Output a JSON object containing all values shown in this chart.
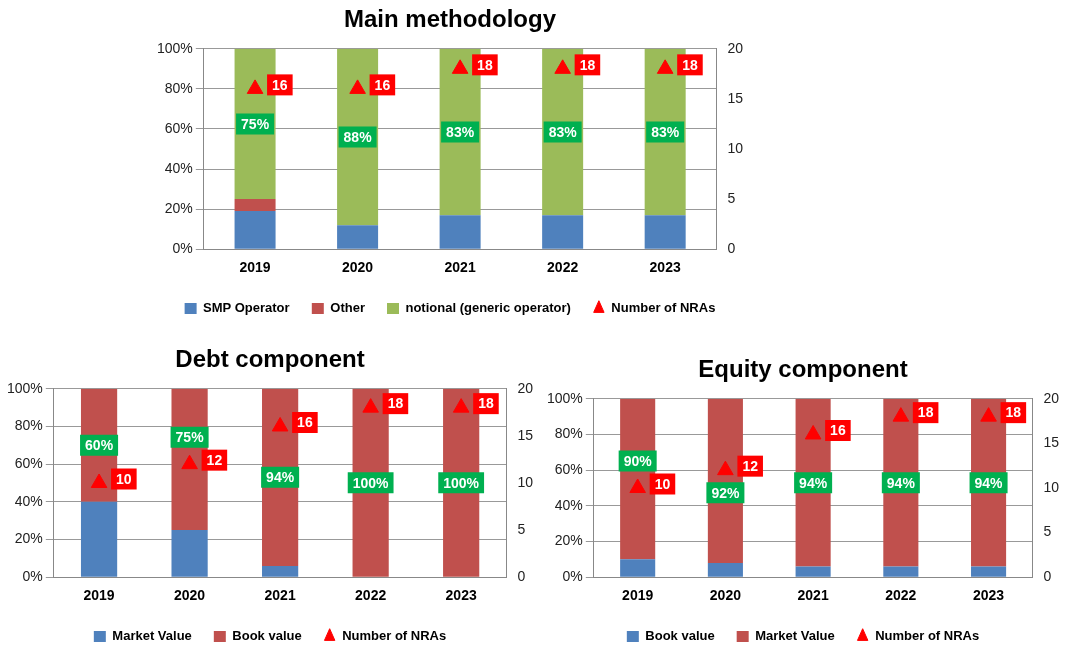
{
  "chart_data": [
    {
      "type": "bar",
      "title": "Main methodology",
      "categories": [
        "2019",
        "2020",
        "2021",
        "2022",
        "2023"
      ],
      "stacked": true,
      "series": [
        {
          "name": "SMP Operator",
          "color": "#4f81bd",
          "values": [
            19,
            12,
            17,
            17,
            17
          ]
        },
        {
          "name": "Other",
          "color": "#c0504d",
          "values": [
            6,
            0,
            0,
            0,
            0
          ]
        },
        {
          "name": "notional (generic operator)",
          "color": "#9bbb59",
          "values": [
            75,
            88,
            83,
            83,
            83
          ],
          "value_labels": [
            "75%",
            "88%",
            "83%",
            "83%",
            "83%"
          ]
        },
        {
          "name": "Number of NRAs",
          "type": "scatter",
          "axis": "y2",
          "color": "#ff0000",
          "values": [
            16,
            16,
            18,
            18,
            18
          ],
          "value_labels": [
            "16",
            "16",
            "18",
            "18",
            "18"
          ]
        }
      ],
      "ylim": [
        0,
        100
      ],
      "yticks": [
        {
          "value": 0,
          "label": "0%"
        },
        {
          "value": 20,
          "label": "20%"
        },
        {
          "value": 40,
          "label": "40%"
        },
        {
          "value": 60,
          "label": "60%"
        },
        {
          "value": 80,
          "label": "80%"
        },
        {
          "value": 100,
          "label": "100%"
        }
      ],
      "y2lim": [
        0,
        20
      ],
      "y2ticks": [
        0,
        5,
        10,
        15,
        20
      ],
      "grid": "y",
      "legend": "bottom",
      "marker": "triangle"
    },
    {
      "type": "bar",
      "title": "Debt component",
      "categories": [
        "2019",
        "2020",
        "2021",
        "2022",
        "2023"
      ],
      "stacked": true,
      "series": [
        {
          "name": "Market Value",
          "color": "#4f81bd",
          "values": [
            40,
            25,
            6,
            0,
            0
          ]
        },
        {
          "name": "Book value",
          "color": "#c0504d",
          "values": [
            60,
            75,
            94,
            100,
            100
          ],
          "value_labels": [
            "60%",
            "75%",
            "94%",
            "100%",
            "100%"
          ]
        },
        {
          "name": "Number of NRAs",
          "type": "scatter",
          "axis": "y2",
          "color": "#ff0000",
          "values": [
            10,
            12,
            16,
            18,
            18
          ],
          "value_labels": [
            "10",
            "12",
            "16",
            "18",
            "18"
          ]
        }
      ],
      "ylim": [
        0,
        100
      ],
      "yticks": [
        {
          "value": 0,
          "label": "0%"
        },
        {
          "value": 20,
          "label": "20%"
        },
        {
          "value": 40,
          "label": "40%"
        },
        {
          "value": 60,
          "label": "60%"
        },
        {
          "value": 80,
          "label": "80%"
        },
        {
          "value": 100,
          "label": "100%"
        }
      ],
      "y2lim": [
        0,
        20
      ],
      "y2ticks": [
        0,
        5,
        10,
        15,
        20
      ],
      "grid": "y",
      "legend": "bottom",
      "marker": "triangle"
    },
    {
      "type": "bar",
      "title": "Equity component",
      "categories": [
        "2019",
        "2020",
        "2021",
        "2022",
        "2023"
      ],
      "stacked": true,
      "series": [
        {
          "name": "Book value",
          "color": "#4f81bd",
          "values": [
            10,
            8,
            6,
            6,
            6
          ]
        },
        {
          "name": "Market Value",
          "color": "#c0504d",
          "values": [
            90,
            92,
            94,
            94,
            94
          ],
          "value_labels": [
            "90%",
            "92%",
            "94%",
            "94%",
            "94%"
          ]
        },
        {
          "name": "Number of NRAs",
          "type": "scatter",
          "axis": "y2",
          "color": "#ff0000",
          "values": [
            10,
            12,
            16,
            18,
            18
          ],
          "value_labels": [
            "10",
            "12",
            "16",
            "18",
            "18"
          ]
        }
      ],
      "ylim": [
        0,
        100
      ],
      "yticks": [
        {
          "value": 0,
          "label": "0%"
        },
        {
          "value": 20,
          "label": "20%"
        },
        {
          "value": 40,
          "label": "40%"
        },
        {
          "value": 60,
          "label": "60%"
        },
        {
          "value": 80,
          "label": "80%"
        },
        {
          "value": 100,
          "label": "100%"
        }
      ],
      "y2lim": [
        0,
        20
      ],
      "y2ticks": [
        0,
        5,
        10,
        15,
        20
      ],
      "grid": "y",
      "legend": "bottom",
      "marker": "triangle"
    }
  ]
}
